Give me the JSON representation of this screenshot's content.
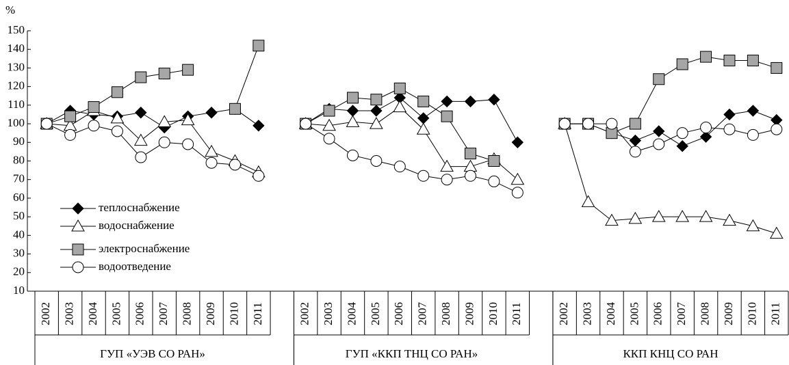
{
  "chart_data": {
    "type": "line",
    "y_label": "%",
    "ylim": [
      10,
      150
    ],
    "yticks": [
      10,
      20,
      30,
      40,
      50,
      60,
      70,
      80,
      90,
      100,
      110,
      120,
      130,
      140,
      150
    ],
    "groups": [
      {
        "label": "ГУП «УЭВ СО РАН»",
        "categories": [
          "2002",
          "2003",
          "2004",
          "2005",
          "2006",
          "2007",
          "2008",
          "2009",
          "2010",
          "2011"
        ]
      },
      {
        "label": "ГУП «ККП ТНЦ СО РАН»",
        "categories": [
          "2002",
          "2003",
          "2004",
          "2005",
          "2006",
          "2007",
          "2008",
          "2009",
          "2010",
          "2011"
        ]
      },
      {
        "label": "ККП КНЦ СО РАН",
        "categories": [
          "2002",
          "2003",
          "2004",
          "2005",
          "2006",
          "2007",
          "2008",
          "2009",
          "2010",
          "2011"
        ]
      }
    ],
    "series": [
      {
        "name": "теплоснабжение",
        "marker": "diamond",
        "color": "#000000",
        "values": [
          [
            100,
            107,
            105,
            104,
            106,
            98,
            104,
            106,
            108,
            99
          ],
          [
            100,
            108,
            107,
            107,
            114,
            103,
            112,
            112,
            113,
            90
          ],
          [
            100,
            100,
            95,
            91,
            96,
            88,
            93,
            105,
            107,
            102
          ]
        ]
      },
      {
        "name": "водоснабжение",
        "marker": "triangle",
        "color": "#ffffff",
        "values": [
          [
            100,
            99,
            107,
            103,
            91,
            101,
            102,
            85,
            80,
            74
          ],
          [
            100,
            99,
            101,
            100,
            109,
            97,
            77,
            77,
            81,
            70
          ],
          [
            100,
            58,
            48,
            49,
            50,
            50,
            50,
            48,
            45,
            41
          ]
        ]
      },
      {
        "name": "электроснабжение",
        "marker": "square",
        "color": "#a6a6a6",
        "values": [
          [
            100,
            104,
            109,
            117,
            125,
            127,
            129,
            null,
            108,
            142
          ],
          [
            100,
            107,
            114,
            113,
            119,
            112,
            104,
            84,
            80,
            null
          ],
          [
            100,
            100,
            95,
            100,
            124,
            132,
            136,
            134,
            134,
            130
          ]
        ]
      },
      {
        "name": "водоотведение",
        "marker": "circle",
        "color": "#ffffff",
        "values": [
          [
            100,
            94,
            99,
            96,
            82,
            90,
            89,
            79,
            78,
            72
          ],
          [
            100,
            92,
            83,
            80,
            77,
            72,
            70,
            72,
            69,
            63
          ],
          [
            100,
            100,
            100,
            85,
            89,
            95,
            98,
            97,
            94,
            97
          ]
        ]
      }
    ]
  }
}
